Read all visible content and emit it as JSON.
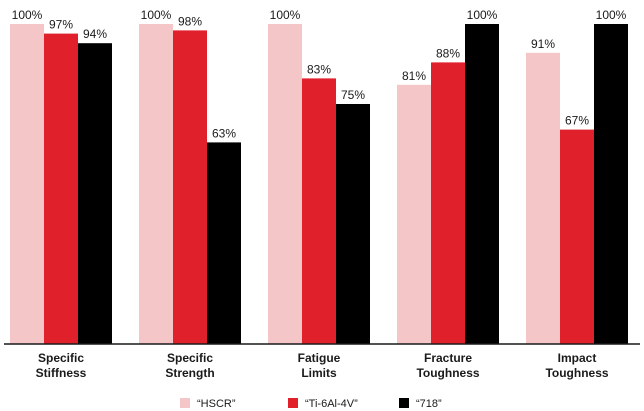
{
  "chart_data": {
    "type": "bar",
    "categories": [
      [
        "Specific",
        "Stiffness"
      ],
      [
        "Specific",
        "Strength"
      ],
      [
        "Fatigue",
        "Limits"
      ],
      [
        "Fracture",
        "Toughness"
      ],
      [
        "Impact",
        "Toughness"
      ]
    ],
    "series": [
      {
        "name": "“HSCR”",
        "color": "#f5c6c8",
        "values": [
          100,
          100,
          100,
          81,
          91
        ],
        "labels": [
          "100%",
          "100%",
          "100%",
          "81%",
          "91%"
        ]
      },
      {
        "name": "“Ti-6Al-4V”",
        "color": "#e0202a",
        "values": [
          97,
          98,
          83,
          88,
          67
        ],
        "labels": [
          "97%",
          "98%",
          "83%",
          "88%",
          "67%"
        ]
      },
      {
        "name": "“718”",
        "color": "#000000",
        "values": [
          94,
          63,
          75,
          100,
          100
        ],
        "labels": [
          "94%",
          "63%",
          "75%",
          "100%",
          "100%"
        ]
      }
    ],
    "ylim": [
      0,
      100
    ],
    "title": "",
    "xlabel": "",
    "ylabel": "",
    "legend_position": "bottom",
    "grid": false
  }
}
